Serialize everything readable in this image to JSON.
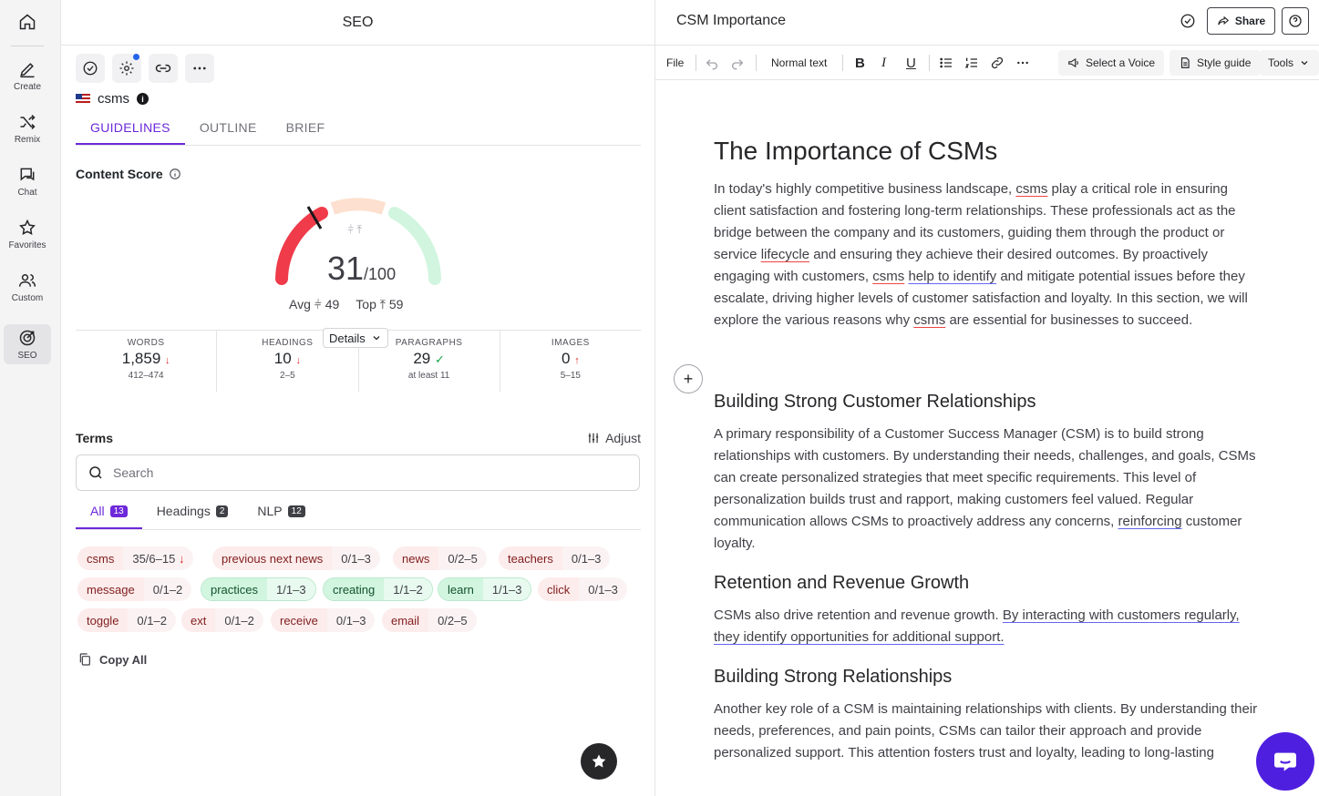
{
  "rail": {
    "items": [
      {
        "label": "Create"
      },
      {
        "label": "Remix"
      },
      {
        "label": "Chat"
      },
      {
        "label": "Favorites"
      },
      {
        "label": "Custom"
      },
      {
        "label": "SEO"
      }
    ]
  },
  "seo": {
    "header": "SEO",
    "keyword": "csms",
    "tabs": [
      "GUIDELINES",
      "OUTLINE",
      "BRIEF"
    ],
    "content_score": {
      "title": "Content Score",
      "score": "31",
      "max": "/100",
      "avg_label": "Avg",
      "avg": "49",
      "top_label": "Top",
      "top": "59"
    },
    "details_label": "Details",
    "stats": [
      {
        "key": "WORDS",
        "value": "1,859",
        "range": "412–474",
        "status": "down"
      },
      {
        "key": "HEADINGS",
        "value": "10",
        "range": "2–5",
        "status": "down"
      },
      {
        "key": "PARAGRAPHS",
        "value": "29",
        "range": "at least 11",
        "status": "ok"
      },
      {
        "key": "IMAGES",
        "value": "0",
        "range": "5–15",
        "status": "up"
      }
    ],
    "terms_title": "Terms",
    "adjust_label": "Adjust",
    "search_placeholder": "Search",
    "term_tabs": [
      {
        "label": "All",
        "count": "13"
      },
      {
        "label": "Headings",
        "count": "2"
      },
      {
        "label": "NLP",
        "count": "12"
      }
    ],
    "terms": [
      {
        "name": "csms",
        "count": "35/6–15",
        "state": "red",
        "arrow": "↓"
      },
      {
        "name": "previous next news",
        "count": "0/1–3",
        "state": "red"
      },
      {
        "name": "news",
        "count": "0/2–5",
        "state": "red"
      },
      {
        "name": "teachers",
        "count": "0/1–3",
        "state": "red"
      },
      {
        "name": "message",
        "count": "0/1–2",
        "state": "red"
      },
      {
        "name": "practices",
        "count": "1/1–3",
        "state": "green"
      },
      {
        "name": "creating",
        "count": "1/1–2",
        "state": "green"
      },
      {
        "name": "learn",
        "count": "1/1–3",
        "state": "green"
      },
      {
        "name": "click",
        "count": "0/1–3",
        "state": "red"
      },
      {
        "name": "toggle",
        "count": "0/1–2",
        "state": "red"
      },
      {
        "name": "ext",
        "count": "0/1–2",
        "state": "red"
      },
      {
        "name": "receive",
        "count": "0/1–3",
        "state": "red"
      },
      {
        "name": "email",
        "count": "0/2–5",
        "state": "red"
      }
    ],
    "copy_all": "Copy All"
  },
  "editor": {
    "title": "CSM Importance",
    "share": "Share",
    "toolbar": {
      "file": "File",
      "style": "Normal text",
      "voice": "Select a Voice",
      "style_guide": "Style guide",
      "tools": "Tools"
    },
    "doc": {
      "h1": "The Importance of CSMs",
      "p1": [
        {
          "t": "In today's highly competitive business landscape, "
        },
        {
          "t": "csms",
          "u": "red"
        },
        {
          "t": " play a critical role in ensuring client satisfaction and fostering long-term relationships. These professionals act as the bridge between the company and its customers, guiding them through the product or service "
        },
        {
          "t": "lifecycle",
          "u": "red"
        },
        {
          "t": " and ensuring they achieve their desired outcomes. By proactively engaging with customers, "
        },
        {
          "t": "csms",
          "u": "red"
        },
        {
          "t": " "
        },
        {
          "t": "help to identify",
          "u": "blue"
        },
        {
          "t": " and mitigate potential issues before they escalate, driving higher levels of customer satisfaction and loyalty. In this section, we will explore the various reasons why "
        },
        {
          "t": "csms",
          "u": "red"
        },
        {
          "t": " are essential for businesses to succeed."
        }
      ],
      "h2a": "Building Strong Customer Relationships",
      "p2": [
        {
          "t": "A primary responsibility of a Customer Success Manager (CSM) is to build strong relationships with customers. By understanding their needs, challenges, and goals, CSMs can create personalized strategies that meet specific requirements. This level of personalization builds trust and rapport, making customers feel valued. Regular communication allows CSMs to proactively address any concerns, "
        },
        {
          "t": "reinforcing",
          "u": "blue"
        },
        {
          "t": " customer loyalty."
        }
      ],
      "h2b": "Retention and Revenue Growth",
      "p3": [
        {
          "t": "CSMs also drive retention and revenue growth. "
        },
        {
          "t": "By interacting with customers regularly, they identify opportunities for additional support.",
          "u": "blue"
        }
      ],
      "h2c": "Building Strong Relationships",
      "p4": [
        {
          "t": "Another key role of a CSM is maintaining relationships with clients. By understanding their needs, preferences, and pain points, CSMs can tailor their approach and provide personalized support. This attention fosters trust and loyalty, leading to long-lasting"
        }
      ]
    }
  }
}
